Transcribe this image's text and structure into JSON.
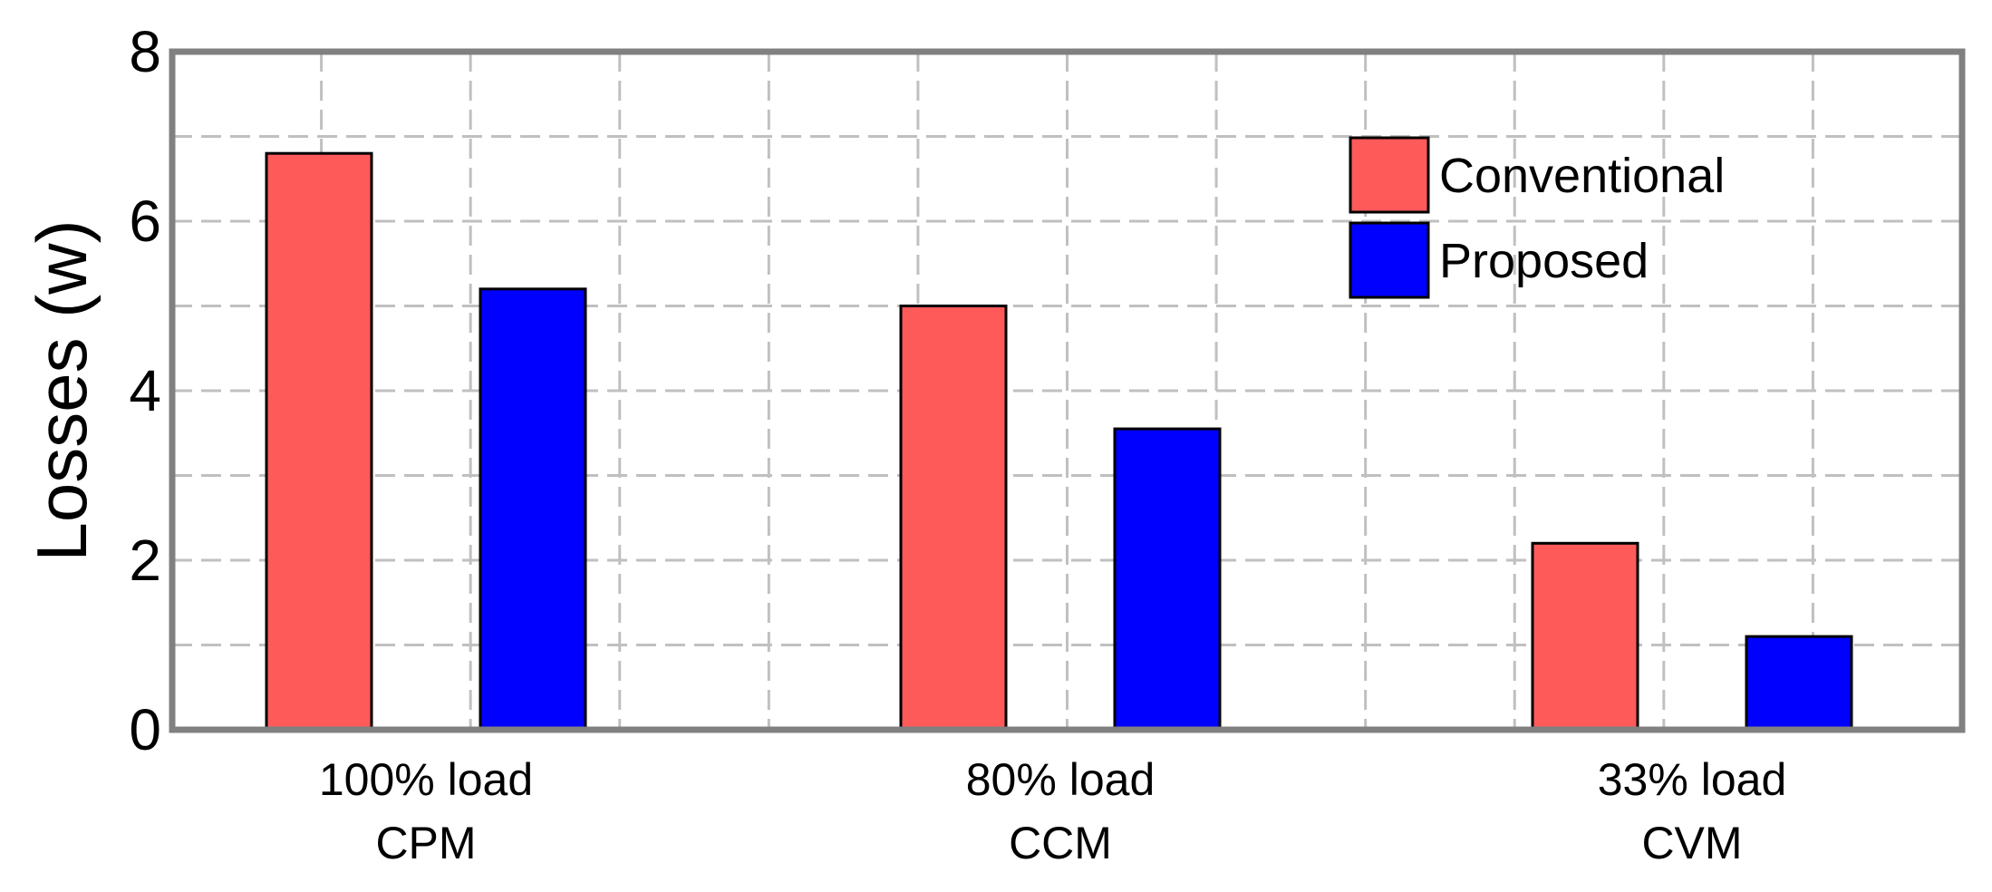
{
  "chart_data": {
    "type": "bar",
    "title": "",
    "xlabel": "",
    "ylabel": "Losses (w)",
    "ylim": [
      0,
      8
    ],
    "yticks": [
      0,
      2,
      4,
      6,
      8
    ],
    "grid": true,
    "legend_position": "top-right",
    "categories": [
      {
        "line1": "100% load",
        "line2": "CPM"
      },
      {
        "line1": "80% load",
        "line2": "CCM"
      },
      {
        "line1": "33% load",
        "line2": "CVM"
      }
    ],
    "series": [
      {
        "name": "Conventional",
        "color": "#fe5a5a",
        "values": [
          6.8,
          5.0,
          2.2
        ]
      },
      {
        "name": "Proposed",
        "color": "#0000ff",
        "values": [
          5.2,
          3.55,
          1.1
        ]
      }
    ]
  }
}
